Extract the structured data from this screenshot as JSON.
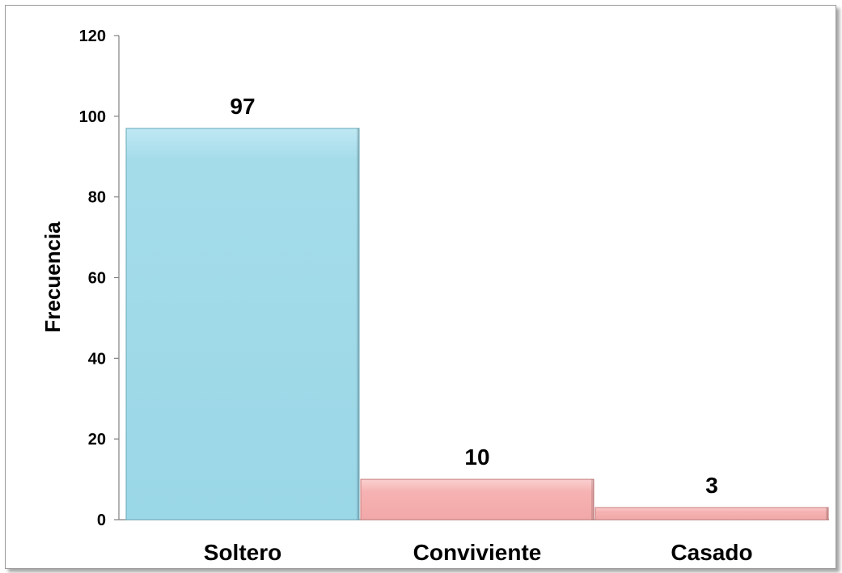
{
  "chart_data": {
    "type": "bar",
    "categories": [
      "Soltero",
      "Conviviente",
      "Casado"
    ],
    "values": [
      97,
      10,
      3
    ],
    "data_labels": [
      "97",
      "10",
      "3"
    ],
    "title": "",
    "xlabel": "",
    "ylabel": "Frecuencia",
    "ylim": [
      0,
      120
    ],
    "yticks": [
      0,
      20,
      40,
      60,
      80,
      100,
      120
    ],
    "ytick_labels": [
      "0",
      "20",
      "40",
      "60",
      "80",
      "100",
      "120"
    ],
    "grid": false,
    "legend": "none",
    "colors": {
      "Soltero": "#a5dcea",
      "Conviviente": "#f6b3b3",
      "Casado": "#f6b3b3"
    }
  }
}
